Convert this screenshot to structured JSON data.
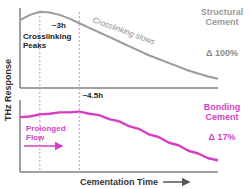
{
  "chart_data": [
    {
      "type": "line",
      "y_label": "THz Response",
      "tick_labels": false,
      "xlim": [
        0,
        100
      ],
      "ylim": [
        0,
        105
      ],
      "x": [
        0,
        5,
        10,
        15,
        20,
        25,
        30,
        35,
        40,
        45,
        50,
        55,
        60,
        65,
        70,
        75,
        80,
        85,
        90,
        95,
        100
      ],
      "series": [
        {
          "name": "Structural Cement",
          "color": "#9a9a9a",
          "line_style": "solid",
          "values": [
            89,
            96,
            100,
            99,
            96,
            91,
            85,
            79,
            73,
            67,
            61,
            55,
            49,
            43,
            38,
            33,
            28,
            23,
            19,
            15,
            12
          ]
        }
      ],
      "annotations": [
        {
          "text": "~3h",
          "x": 10
        },
        {
          "text": "Crosslinking Peaks"
        },
        {
          "text": "Crosslinking slows"
        },
        {
          "text": "Δ 100%"
        }
      ]
    },
    {
      "type": "line",
      "x_label": "Cementation Time",
      "tick_labels": false,
      "xlim": [
        0,
        100
      ],
      "ylim": [
        0,
        105
      ],
      "x": [
        0,
        5,
        10,
        15,
        20,
        25,
        30,
        35,
        40,
        45,
        50,
        55,
        60,
        65,
        70,
        75,
        80,
        85,
        90,
        95,
        100
      ],
      "series": [
        {
          "name": "Bonding Cement",
          "color": "#d63fc4",
          "line_style": "solid",
          "values": [
            80,
            81,
            84,
            85,
            87,
            87,
            88,
            85,
            83,
            77,
            74,
            67,
            63,
            55,
            51,
            43,
            39,
            31,
            27,
            20,
            17
          ]
        }
      ],
      "annotations": [
        {
          "text": "~4.5h",
          "x": 30
        },
        {
          "text": "Prolonged Flow"
        },
        {
          "text": "Δ 17%"
        }
      ]
    }
  ]
}
